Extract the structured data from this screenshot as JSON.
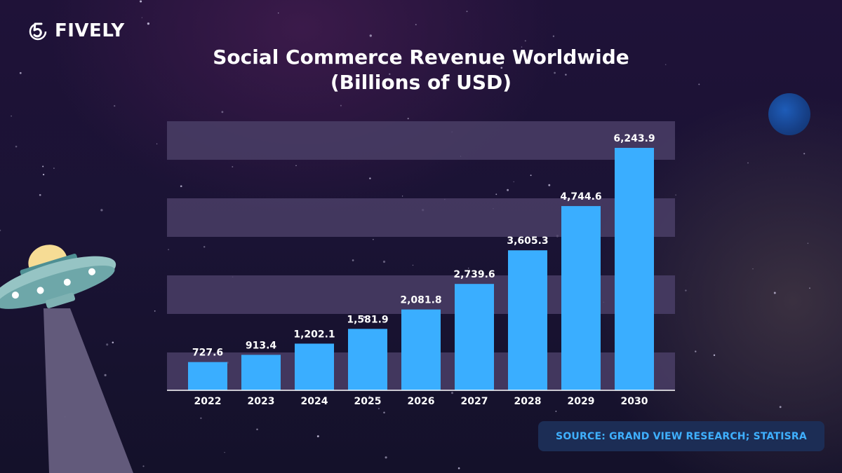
{
  "brand": {
    "name": "FIVELY"
  },
  "title_line1": "Social Commerce Revenue Worldwide",
  "title_line2": "(Billions of USD)",
  "source": "SOURCE: GRAND VIEW RESEARCH; STATISRA",
  "colors": {
    "bar": "#3aaeff",
    "band": "#4a3e66",
    "source_text": "#3fb0ff",
    "source_bg": "#1c2d55"
  },
  "chart_data": {
    "type": "bar",
    "categories": [
      "2022",
      "2023",
      "2024",
      "2025",
      "2026",
      "2027",
      "2028",
      "2029",
      "2030"
    ],
    "values": [
      727.6,
      913.4,
      1202.1,
      1581.9,
      2081.8,
      2739.6,
      3605.3,
      4744.6,
      6243.9
    ],
    "value_labels": [
      "727.6",
      "913.4",
      "1,202.1",
      "1,581.9",
      "2,081.8",
      "2,739.6",
      "3,605.3",
      "4,744.6",
      "6,243.9"
    ],
    "xlabel": "",
    "ylabel": "",
    "grid": "alternating horizontal bands",
    "legend": "none"
  }
}
